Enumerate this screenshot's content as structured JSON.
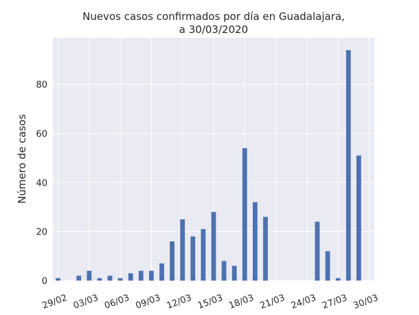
{
  "chart_data": {
    "type": "bar",
    "title_line1": "Nuevos casos confirmados por día en Guadalajara,",
    "title_line2": "a 30/03/2020",
    "xlabel": "",
    "ylabel": "Número de casos",
    "ylim": [
      0,
      99
    ],
    "yticks": [
      0,
      20,
      40,
      60,
      80
    ],
    "grid": true,
    "bar_color": "#4c72b0",
    "background_color": "#eaeaf2",
    "categories": [
      "29/02",
      "01/03",
      "02/03",
      "03/03",
      "04/03",
      "05/03",
      "06/03",
      "07/03",
      "08/03",
      "09/03",
      "10/03",
      "11/03",
      "12/03",
      "13/03",
      "14/03",
      "15/03",
      "16/03",
      "17/03",
      "18/03",
      "19/03",
      "20/03",
      "21/03",
      "22/03",
      "23/03",
      "24/03",
      "25/03",
      "26/03",
      "27/03",
      "28/03",
      "29/03",
      "30/03"
    ],
    "values": [
      1,
      0,
      2,
      4,
      1,
      2,
      1,
      3,
      4,
      4,
      7,
      16,
      25,
      18,
      21,
      28,
      8,
      6,
      54,
      32,
      26,
      0,
      0,
      0,
      0,
      24,
      12,
      1,
      94,
      51,
      0
    ],
    "xtick_labels": [
      "29/02",
      "03/03",
      "06/03",
      "09/03",
      "12/03",
      "15/03",
      "18/03",
      "21/03",
      "24/03",
      "27/03",
      "30/03"
    ],
    "xtick_label_index": [
      0,
      3,
      6,
      9,
      12,
      15,
      18,
      21,
      24,
      27,
      30
    ]
  }
}
